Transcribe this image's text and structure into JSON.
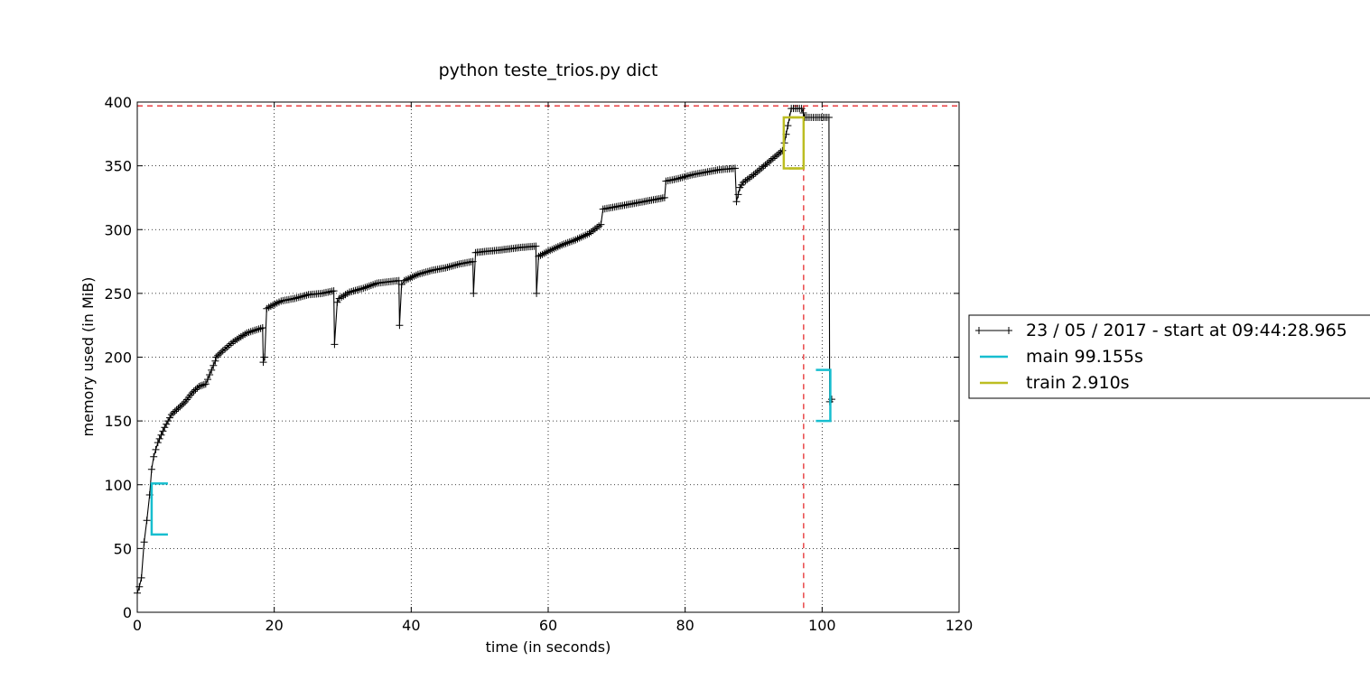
{
  "chart_data": {
    "type": "line",
    "title": "python teste_trios.py dict",
    "xlabel": "time (in seconds)",
    "ylabel": "memory used (in MiB)",
    "xlim": [
      0,
      120
    ],
    "ylim": [
      0,
      400
    ],
    "xticks": [
      0,
      20,
      40,
      60,
      80,
      100,
      120
    ],
    "yticks": [
      0,
      50,
      100,
      150,
      200,
      250,
      300,
      350,
      400
    ],
    "grid": true,
    "max_memory_line": 397,
    "max_time_line": 97.3,
    "legend_position": "outside right",
    "series": [
      {
        "name": "23 / 05 / 2017 - start at 09:44:28.965",
        "color": "#000000",
        "marker": "+",
        "x": [
          0,
          0.3,
          0.6,
          1.0,
          1.4,
          1.8,
          2.1,
          2.4,
          3.0,
          4.0,
          5.0,
          6.0,
          7.0,
          8.0,
          9.0,
          10.0,
          11.4,
          11.5,
          12.5,
          14.0,
          16.0,
          18.3,
          18.4,
          18.6,
          18.9,
          19.5,
          21.0,
          23.0,
          25.0,
          27.0,
          28.7,
          28.8,
          29.2,
          29.5,
          31.0,
          33.0,
          35.0,
          38.2,
          38.3,
          38.6,
          39.0,
          41.0,
          43.0,
          45.0,
          47.0,
          49.0,
          49.1,
          49.4,
          51.0,
          53.0,
          56.0,
          58.2,
          58.3,
          58.6,
          60.0,
          62.0,
          64.0,
          66.0,
          67.7,
          68.0,
          70.0,
          72.0,
          74.0,
          77.0,
          77.2,
          79.0,
          81.0,
          83.0,
          85.0,
          87.3,
          87.5,
          88.0,
          88.5,
          90.0,
          92.0,
          94.2,
          94.5,
          95.5,
          97.0,
          97.5,
          99.0,
          101.0,
          101.1,
          101.4
        ],
        "y": [
          15,
          20,
          27,
          55,
          72,
          92,
          112,
          122,
          133,
          145,
          155,
          160,
          165,
          172,
          177,
          179,
          197,
          200,
          205,
          212,
          219,
          223,
          196,
          200,
          238,
          240,
          244,
          246,
          249,
          250,
          252,
          210,
          243,
          246,
          251,
          254,
          258,
          260,
          225,
          257,
          260,
          265,
          268,
          270,
          273,
          275,
          250,
          282,
          283,
          284,
          286,
          287,
          250,
          279,
          283,
          288,
          292,
          297,
          304,
          316,
          318,
          320,
          322,
          325,
          338,
          340,
          343,
          345,
          347,
          348,
          322,
          333,
          337,
          343,
          352,
          362,
          368,
          395,
          395,
          388,
          388,
          388,
          165,
          167
        ]
      },
      {
        "name": "main 99.155s",
        "color": "#17becf",
        "bracket_start": 2.1,
        "bracket_end": 101.2,
        "start_mem_range": [
          61,
          101
        ],
        "end_mem_range": [
          150,
          190
        ]
      },
      {
        "name": "train 2.910s",
        "color": "#bcbd22",
        "bracket_start": 94.4,
        "bracket_end": 97.3,
        "start_mem_range": [
          348,
          388
        ],
        "end_mem_range": [
          348,
          388
        ]
      }
    ]
  }
}
